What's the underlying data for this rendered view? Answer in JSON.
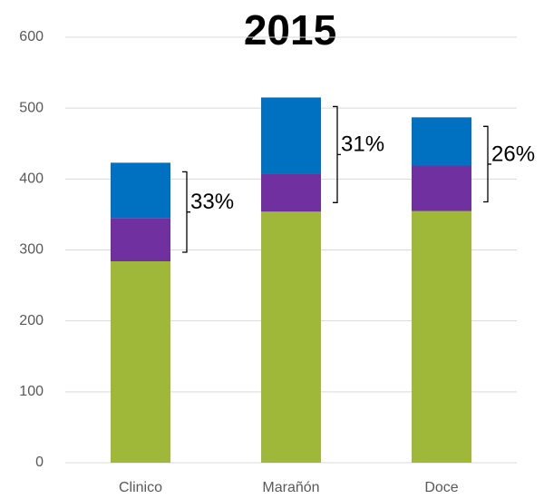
{
  "chart_data": {
    "type": "stacked_bar",
    "title": "2015",
    "categories": [
      "Clinico",
      "Marañón",
      "Doce"
    ],
    "series": [
      {
        "color": "#9fb83a",
        "values": [
          284,
          354,
          355
        ]
      },
      {
        "color": "#7030a0",
        "values": [
          61,
          54,
          64
        ]
      },
      {
        "color": "#0070c0",
        "values": [
          78,
          107,
          68
        ]
      }
    ],
    "annotations": [
      "33%",
      "31%",
      "26%"
    ],
    "ylim": [
      0,
      600
    ],
    "yticks": [
      0,
      100,
      200,
      300,
      400,
      500,
      600
    ],
    "grid": true
  }
}
